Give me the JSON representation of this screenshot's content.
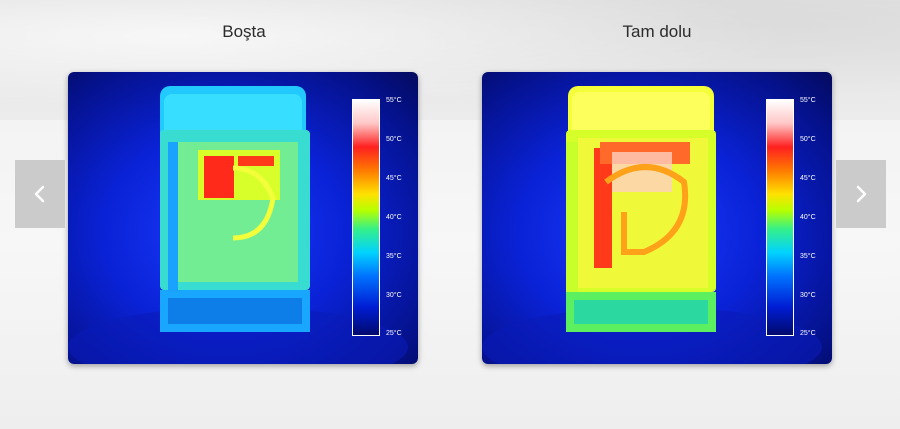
{
  "slides": [
    {
      "title": "Boşta",
      "image": "thermal-image-idle"
    },
    {
      "title": "Tam dolu",
      "image": "thermal-image-full-load"
    }
  ],
  "scale": {
    "labels": [
      "55°C",
      "50°C",
      "45°C",
      "40°C",
      "35°C",
      "30°C",
      "25°C"
    ]
  },
  "nav": {
    "prev_icon": "chevron-left-icon",
    "next_icon": "chevron-right-icon"
  },
  "colors": {
    "nav_bg": "#c8c8c8",
    "title_text": "#2b2b2b"
  }
}
